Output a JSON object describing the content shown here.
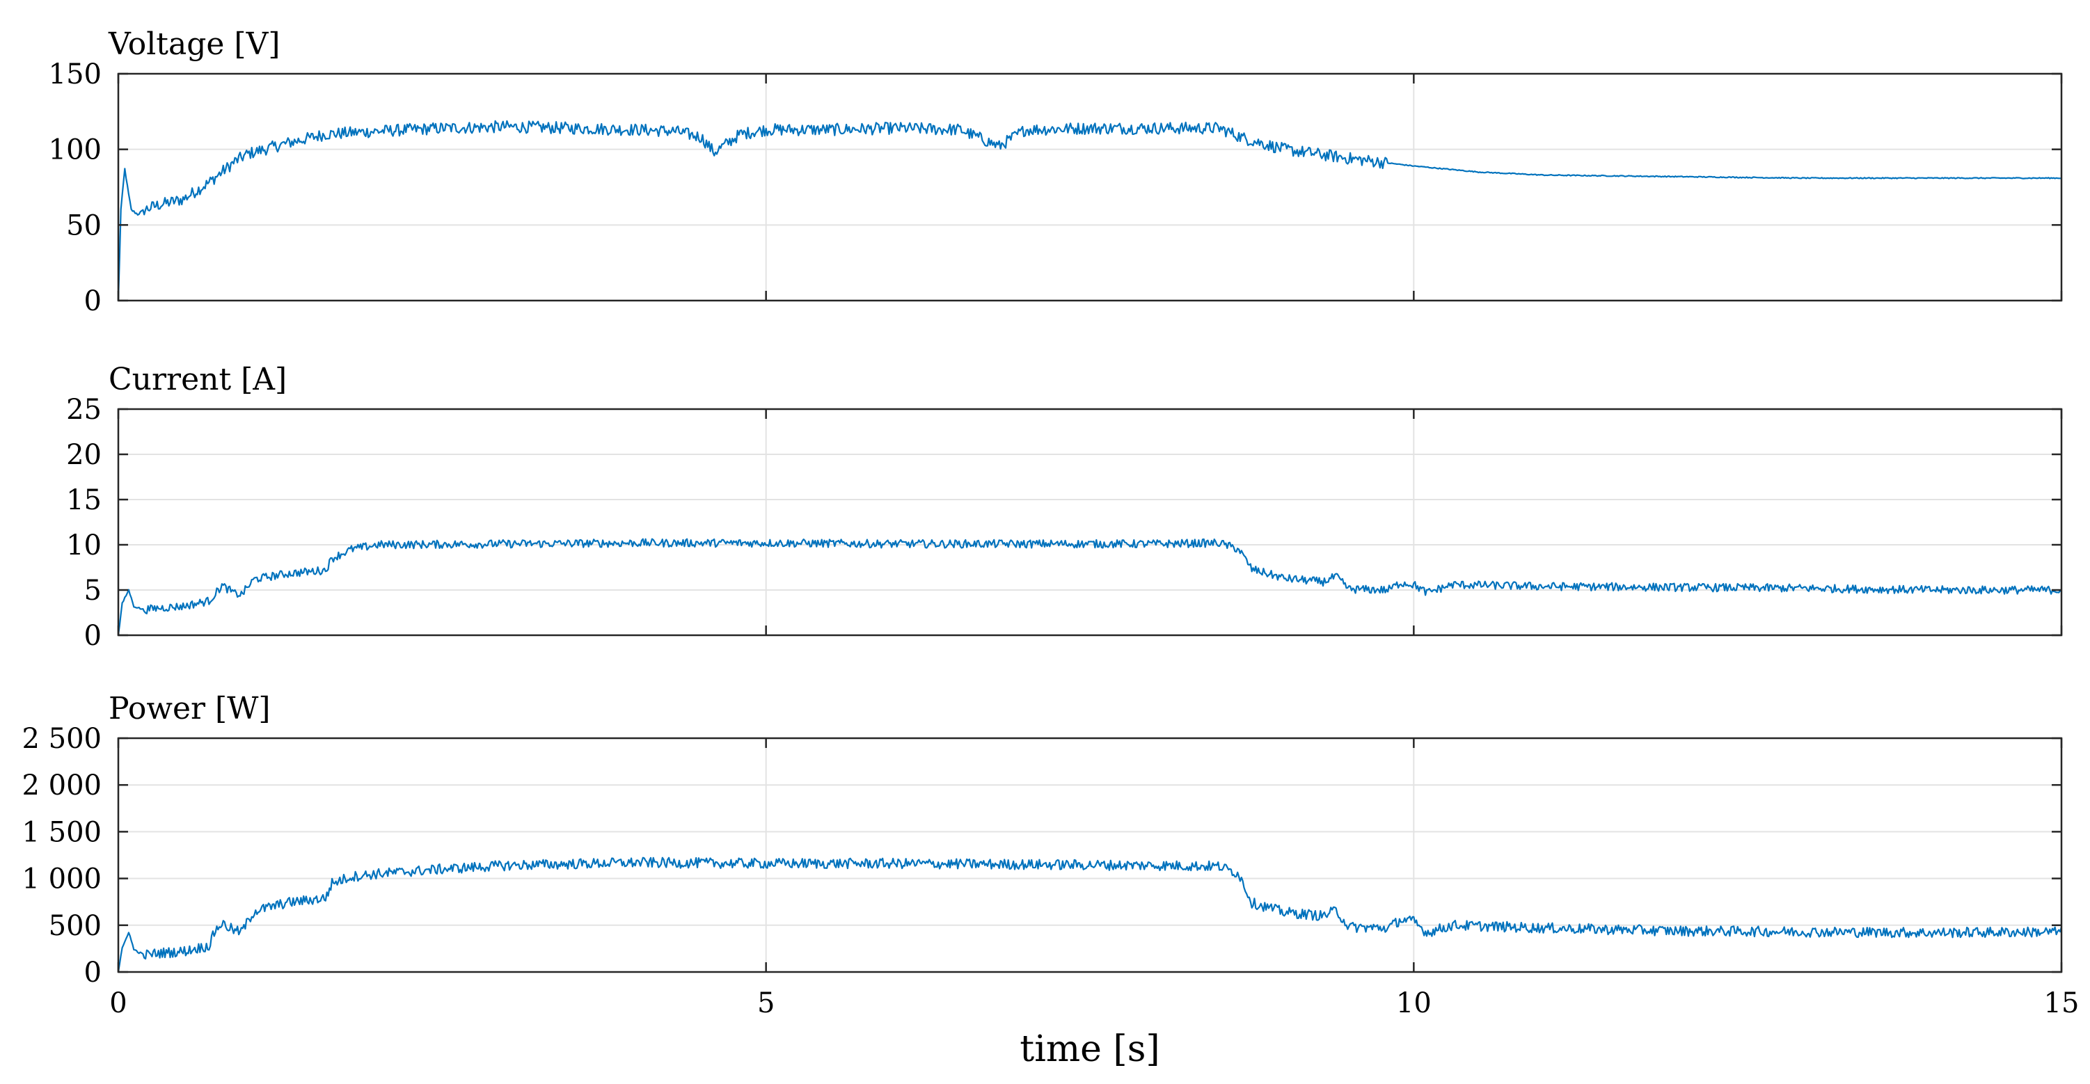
{
  "chart_data": {
    "type": "line",
    "xlabel": "time [s]",
    "xlim": [
      0,
      15
    ],
    "xticks": [
      0,
      5,
      10,
      15
    ],
    "xtick_labels": [
      "0",
      "5",
      "10",
      "15"
    ],
    "grid": true,
    "line_color": "#0072BD",
    "panels": [
      {
        "id": "voltage",
        "title": "Voltage [V]",
        "ylim": [
          0,
          150
        ],
        "yticks": [
          0,
          50,
          100,
          150
        ],
        "ytick_labels": [
          "0",
          "50",
          "100",
          "150"
        ],
        "series": [
          {
            "x": [
              0,
              0.02,
              0.05,
              0.08,
              0.1,
              0.15,
              0.2,
              0.3,
              0.5,
              0.7,
              0.9,
              1.0,
              1.3,
              1.6,
              1.8,
              2.0,
              2.5,
              3.0,
              3.5,
              4.0,
              4.3,
              4.5,
              4.6,
              4.8,
              5.0,
              5.5,
              6.0,
              6.5,
              6.8,
              7.0,
              7.5,
              8.0,
              8.5,
              8.7,
              9.0,
              9.5,
              10.0,
              10.5,
              11.0,
              12.0,
              13.0,
              14.0,
              15.0
            ],
            "y": [
              0,
              60,
              87,
              70,
              60,
              57,
              60,
              63,
              67,
              78,
              92,
              97,
              104,
              110,
              111,
              112,
              114,
              115,
              114,
              113,
              112,
              108,
              98,
              110,
              113,
              113,
              114,
              113,
              102,
              113,
              114,
              114,
              114,
              107,
              100,
              94,
              89,
              85,
              83,
              82,
              81,
              81,
              81
            ],
            "noise": 4
          }
        ]
      },
      {
        "id": "current",
        "title": "Current [A]",
        "ylim": [
          0,
          25
        ],
        "yticks": [
          0,
          5,
          10,
          15,
          20,
          25
        ],
        "ytick_labels": [
          "0",
          "5",
          "10",
          "15",
          "20",
          "25"
        ],
        "series": [
          {
            "x": [
              0,
              0.03,
              0.08,
              0.12,
              0.2,
              0.3,
              0.5,
              0.7,
              0.75,
              0.8,
              0.9,
              0.95,
              1.05,
              1.3,
              1.6,
              1.65,
              1.8,
              2.0,
              3.0,
              4.0,
              5.0,
              6.0,
              7.0,
              8.0,
              8.5,
              8.65,
              8.75,
              9.0,
              9.3,
              9.4,
              9.5,
              9.8,
              9.9,
              10.0,
              10.1,
              10.3,
              11.0,
              12.0,
              13.0,
              14.0,
              15.0
            ],
            "y": [
              0,
              3.5,
              5,
              3.2,
              2.8,
              3.0,
              3.2,
              3.8,
              4.6,
              5.5,
              4.6,
              4.5,
              6.2,
              6.8,
              7.2,
              8.5,
              9.5,
              10.0,
              10.1,
              10.2,
              10.2,
              10.1,
              10.1,
              10.1,
              10.2,
              9.5,
              7.3,
              6.3,
              5.9,
              6.5,
              5.1,
              5.0,
              5.8,
              5.6,
              4.7,
              5.6,
              5.4,
              5.3,
              5.2,
              5.0,
              5.0
            ],
            "noise": 0.45
          }
        ]
      },
      {
        "id": "power",
        "title": "Power [W]",
        "ylim": [
          0,
          2500
        ],
        "yticks": [
          0,
          500,
          1000,
          1500,
          2000,
          2500
        ],
        "ytick_labels": [
          "0",
          "500",
          "1 000",
          "1 500",
          "2 000",
          "2 500"
        ],
        "series": [
          {
            "x": [
              0,
              0.03,
              0.08,
              0.12,
              0.2,
              0.3,
              0.5,
              0.7,
              0.75,
              0.8,
              0.9,
              0.95,
              1.05,
              1.3,
              1.6,
              1.65,
              1.8,
              2.0,
              2.5,
              3.0,
              4.0,
              5.0,
              6.0,
              7.0,
              8.0,
              8.5,
              8.65,
              8.75,
              9.0,
              9.3,
              9.4,
              9.5,
              9.8,
              9.9,
              10.0,
              10.1,
              10.3,
              11.0,
              12.0,
              13.0,
              14.0,
              15.0
            ],
            "y": [
              0,
              250,
              430,
              240,
              180,
              200,
              220,
              280,
              450,
              520,
              440,
              430,
              650,
              740,
              790,
              950,
              1020,
              1050,
              1100,
              1140,
              1170,
              1160,
              1160,
              1150,
              1140,
              1130,
              1050,
              740,
              640,
              600,
              660,
              480,
              470,
              560,
              540,
              420,
              500,
              470,
              440,
              430,
              420,
              430
            ],
            "noise": 55
          }
        ]
      }
    ]
  }
}
